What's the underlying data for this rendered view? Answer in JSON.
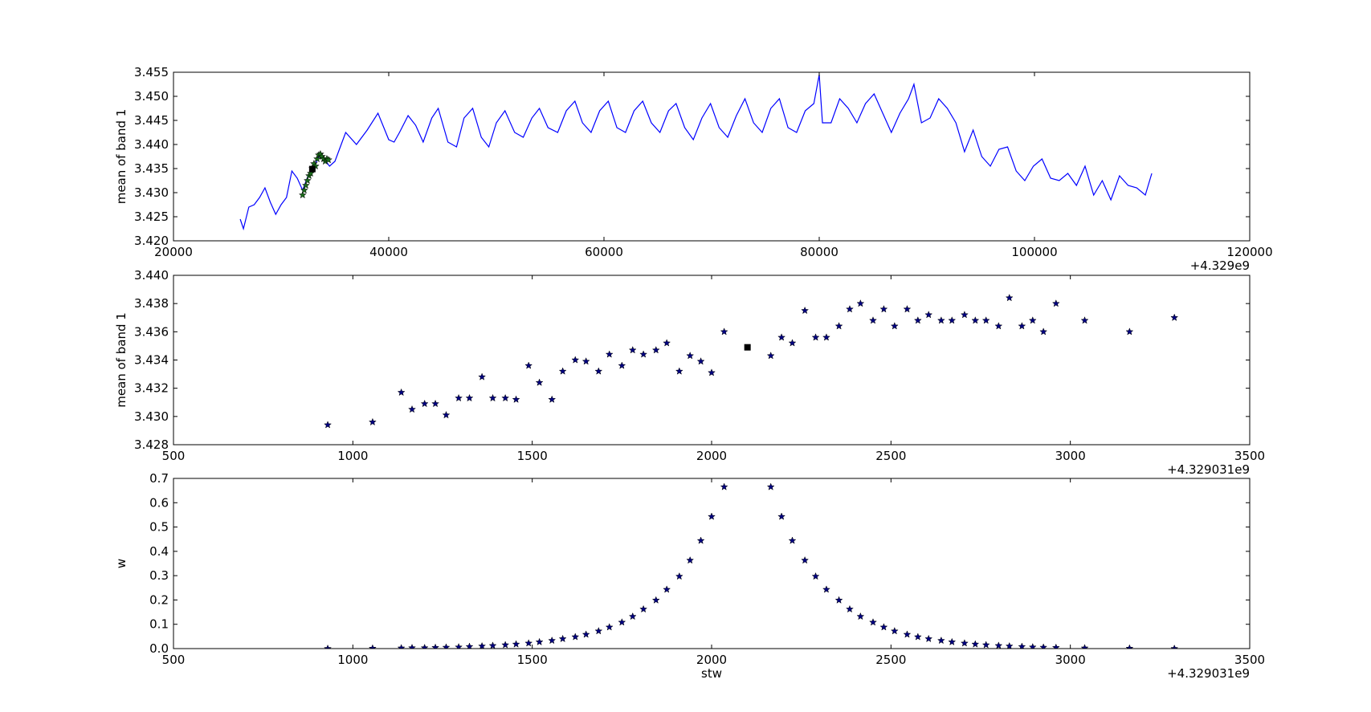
{
  "chart_data": [
    {
      "type": "line",
      "xlabel": "",
      "ylabel": "mean of band 1",
      "xlim": [
        20000,
        120000
      ],
      "ylim": [
        3.42,
        3.455
      ],
      "x_offset_text": "+4.329e9",
      "xticks": [
        "20000",
        "40000",
        "60000",
        "80000",
        "100000",
        "120000"
      ],
      "yticks": [
        "3.420",
        "3.425",
        "3.430",
        "3.435",
        "3.440",
        "3.445",
        "3.450",
        "3.455"
      ],
      "grid": false,
      "series": [
        {
          "style": "line",
          "color": "#0000ff",
          "x": [
            26200,
            26500,
            27000,
            27500,
            28000,
            28500,
            29000,
            29500,
            30000,
            30500,
            31000,
            31500,
            32000,
            32500,
            33000,
            33500,
            34000,
            34500,
            35000,
            35500,
            36000,
            37000,
            38000,
            39000,
            40000,
            40500,
            41000,
            41800,
            42500,
            43200,
            44000,
            44600,
            45500,
            46300,
            47000,
            47800,
            48600,
            49300,
            50000,
            50800,
            51700,
            52500,
            53300,
            54000,
            54800,
            55700,
            56500,
            57300,
            58000,
            58800,
            59600,
            60400,
            61200,
            62000,
            62800,
            63600,
            64400,
            65200,
            66000,
            66700,
            67500,
            68300,
            69100,
            69900,
            70700,
            71500,
            72300,
            73100,
            73900,
            74700,
            75500,
            76300,
            77100,
            77900,
            78700,
            79500,
            80000,
            80300,
            81100,
            81900,
            82700,
            83500,
            84300,
            85100,
            85900,
            86700,
            87500,
            88300,
            88800,
            89500,
            90300,
            91100,
            91900,
            92700,
            93500,
            94300,
            95100,
            95900,
            96700,
            97500,
            98300,
            99100,
            99900,
            100700,
            101500,
            102300,
            103100,
            103900,
            104700,
            105500,
            106300,
            107100,
            107900,
            108700,
            109500,
            110300,
            110900
          ],
          "y": [
            3.4245,
            3.4225,
            3.427,
            3.4275,
            3.429,
            3.431,
            3.428,
            3.4255,
            3.4275,
            3.429,
            3.4345,
            3.433,
            3.4305,
            3.4335,
            3.435,
            3.4375,
            3.437,
            3.4355,
            3.4365,
            3.4395,
            3.4425,
            3.44,
            3.443,
            3.4465,
            3.441,
            3.4405,
            3.4425,
            3.446,
            3.444,
            3.4405,
            3.4455,
            3.4475,
            3.4405,
            3.4395,
            3.4455,
            3.4475,
            3.4415,
            3.4395,
            3.4445,
            3.447,
            3.4425,
            3.4415,
            3.4455,
            3.4475,
            3.4435,
            3.4425,
            3.447,
            3.449,
            3.4445,
            3.4425,
            3.447,
            3.449,
            3.4435,
            3.4425,
            3.447,
            3.449,
            3.4445,
            3.4425,
            3.447,
            3.4485,
            3.4435,
            3.441,
            3.4455,
            3.4485,
            3.4435,
            3.4415,
            3.446,
            3.4495,
            3.4445,
            3.4425,
            3.4475,
            3.4495,
            3.4435,
            3.4425,
            3.447,
            3.4485,
            3.4545,
            3.4445,
            3.4445,
            3.4495,
            3.4475,
            3.4445,
            3.4485,
            3.4505,
            3.4465,
            3.4425,
            3.4465,
            3.4495,
            3.4525,
            3.4445,
            3.4455,
            3.4495,
            3.4475,
            3.4445,
            3.4385,
            3.443,
            3.4375,
            3.4355,
            3.439,
            3.4395,
            3.4345,
            3.4325,
            3.4355,
            3.437,
            3.433,
            3.4325,
            3.434,
            3.4315,
            3.4355,
            3.4295,
            3.4325,
            3.4285,
            3.4335,
            3.4315,
            3.431,
            3.4295,
            3.434
          ]
        },
        {
          "style": "star",
          "color": "#1b6b1b",
          "x": [
            32000,
            32150,
            32300,
            32450,
            32600,
            32750,
            32900,
            33050,
            33200,
            33350,
            33500,
            33650,
            33800,
            33950,
            34100,
            34250,
            34400
          ],
          "y": [
            3.4295,
            3.4305,
            3.4315,
            3.4325,
            3.4335,
            3.434,
            3.435,
            3.436,
            3.4355,
            3.437,
            3.4378,
            3.438,
            3.4375,
            3.437,
            3.4365,
            3.437,
            3.4368
          ]
        },
        {
          "style": "square",
          "color": "#000000",
          "x": [
            32900
          ],
          "y": [
            3.4349
          ]
        }
      ]
    },
    {
      "type": "scatter",
      "xlabel": "",
      "ylabel": "mean of band 1",
      "xlim": [
        500,
        3500
      ],
      "ylim": [
        3.428,
        3.44
      ],
      "x_offset_text": "+4.329031e9",
      "xticks": [
        "500",
        "1000",
        "1500",
        "2000",
        "2500",
        "3000",
        "3500"
      ],
      "yticks": [
        "3.428",
        "3.430",
        "3.432",
        "3.434",
        "3.436",
        "3.438",
        "3.440"
      ],
      "grid": false,
      "series": [
        {
          "style": "star",
          "color": "#000080",
          "x": [
            930,
            1055,
            1135,
            1165,
            1200,
            1230,
            1260,
            1295,
            1325,
            1360,
            1390,
            1425,
            1455,
            1490,
            1520,
            1555,
            1585,
            1620,
            1650,
            1685,
            1715,
            1750,
            1780,
            1810,
            1845,
            1875,
            1910,
            1940,
            1970,
            2000,
            2035,
            2165,
            2195,
            2225,
            2260,
            2290,
            2320,
            2355,
            2385,
            2415,
            2450,
            2480,
            2510,
            2545,
            2575,
            2605,
            2640,
            2670,
            2705,
            2735,
            2765,
            2800,
            2830,
            2865,
            2895,
            2925,
            2960,
            3040,
            3165,
            3290
          ],
          "y": [
            3.4294,
            3.4296,
            3.4317,
            3.4305,
            3.4309,
            3.4309,
            3.4301,
            3.4313,
            3.4313,
            3.4328,
            3.4313,
            3.4313,
            3.4312,
            3.4336,
            3.4324,
            3.4312,
            3.4332,
            3.434,
            3.4339,
            3.4332,
            3.4344,
            3.4336,
            3.4347,
            3.4344,
            3.4347,
            3.4352,
            3.4332,
            3.4343,
            3.4339,
            3.4331,
            3.436,
            3.4343,
            3.4356,
            3.4352,
            3.4375,
            3.4356,
            3.4356,
            3.4364,
            3.4376,
            3.438,
            3.4368,
            3.4376,
            3.4364,
            3.4376,
            3.4368,
            3.4372,
            3.4368,
            3.4368,
            3.4372,
            3.4368,
            3.4368,
            3.4364,
            3.4384,
            3.4364,
            3.4368,
            3.436,
            3.438,
            3.4368,
            3.436,
            3.437
          ]
        },
        {
          "style": "square",
          "color": "#000000",
          "x": [
            2100
          ],
          "y": [
            3.4349
          ]
        }
      ]
    },
    {
      "type": "scatter",
      "xlabel": "stw",
      "ylabel": "w",
      "xlim": [
        500,
        3500
      ],
      "ylim": [
        0,
        0.7
      ],
      "x_offset_text": "+4.329031e9",
      "xticks": [
        "500",
        "1000",
        "1500",
        "2000",
        "2500",
        "3000",
        "3500"
      ],
      "yticks": [
        "0.0",
        "0.1",
        "0.2",
        "0.3",
        "0.4",
        "0.5",
        "0.6",
        "0.7"
      ],
      "grid": false,
      "series": [
        {
          "style": "star",
          "color": "#000080",
          "x": [
            930,
            1055,
            1135,
            1165,
            1200,
            1230,
            1260,
            1295,
            1325,
            1360,
            1390,
            1425,
            1455,
            1490,
            1520,
            1555,
            1585,
            1620,
            1650,
            1685,
            1715,
            1750,
            1780,
            1810,
            1845,
            1875,
            1910,
            1940,
            1970,
            2000,
            2035,
            2165,
            2195,
            2225,
            2260,
            2290,
            2320,
            2355,
            2385,
            2415,
            2450,
            2480,
            2510,
            2545,
            2575,
            2605,
            2640,
            2670,
            2705,
            2735,
            2765,
            2800,
            2830,
            2865,
            2895,
            2925,
            2960,
            3040,
            3165,
            3290
          ],
          "y": [
            0.0,
            0.001,
            0.002,
            0.003,
            0.003,
            0.004,
            0.005,
            0.006,
            0.008,
            0.01,
            0.012,
            0.015,
            0.018,
            0.022,
            0.027,
            0.033,
            0.04,
            0.048,
            0.058,
            0.072,
            0.088,
            0.108,
            0.132,
            0.162,
            0.199,
            0.243,
            0.297,
            0.363,
            0.444,
            0.543,
            0.665,
            0.665,
            0.543,
            0.444,
            0.363,
            0.297,
            0.243,
            0.199,
            0.162,
            0.132,
            0.108,
            0.088,
            0.072,
            0.058,
            0.048,
            0.04,
            0.033,
            0.027,
            0.022,
            0.018,
            0.015,
            0.012,
            0.01,
            0.008,
            0.006,
            0.005,
            0.004,
            0.002,
            0.001,
            0.0
          ]
        }
      ]
    }
  ]
}
